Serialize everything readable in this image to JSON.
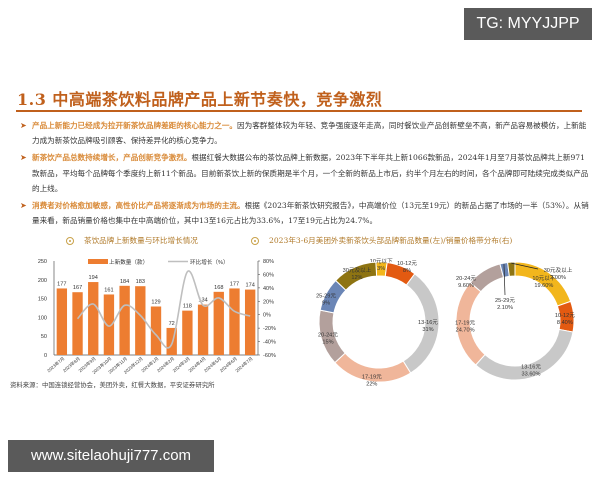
{
  "watermarks": {
    "top_right": "TG: MYYJJPP",
    "bottom_left": "www.sitelaohuji777.com"
  },
  "section": {
    "title": "1.3 中高端茶饮料品牌产品上新节奏快，竞争激烈"
  },
  "bullets": [
    {
      "highlight": "产品上新能力已经成为拉开新茶饮品牌差距的核心能力之一。",
      "body": "因为客群整体较为年轻、竞争强度逐年走高，同时餐饮业产品创新壁垒不高，新产品容易被模仿，上新能力成为新茶饮品牌吸引顾客、保持差异化的核心竞争力。"
    },
    {
      "highlight": "新茶饮产品总数持续增长，产品创新竞争激烈。",
      "body": "根据红餐大数据公布的茶饮品牌上新数据，2023年下半年共上新1066款新品，2024年1月至7月茶饮品牌共上新971款新品，平均每个品牌每个季度约上新11个新品。目前新茶饮上新的保质期是半个月，一个全新的新品上市后，约半个月左右的时间，各个品牌即可陆续完成类似产品的上线。"
    },
    {
      "highlight": "消费者对价格愈加敏感，高性价比产品将逐渐成为市场的主流。",
      "body": "根据《2023年新茶饮研究报告》，中高端价位（13元至19元）的新品占据了市场的一半（53%）。从销量来看，新品销量价格也集中在中高端价位，其中13至16元占比为33.6%，17至19元占比为24.7%。"
    }
  ],
  "figures": {
    "left_title": "茶饮品牌上新数量与环比增长情况",
    "right_title": "2023年3-6月美团外卖新茶饮头部品牌新品数量(左)/销量价格带分布(右)"
  },
  "source": "资料来源：中国连锁经营协会，美团外卖，红餐大数据，平安证券研究所",
  "colors": {
    "accent": "#c0601c",
    "bar": "#ed7d31",
    "line": "#bfbfbf",
    "highlight_text": "#d98b3a"
  },
  "chart_data": [
    {
      "type": "bar",
      "title": "茶饮品牌上新数量与环比增长情况",
      "categories": [
        "2023年7月",
        "2023年8月",
        "2023年9月",
        "2023年10月",
        "2023年11月",
        "2023年12月",
        "2024年1月",
        "2024年2月",
        "2024年3月",
        "2024年4月",
        "2024年5月",
        "2024年6月",
        "2024年7月"
      ],
      "series": [
        {
          "name": "上新数量（款）",
          "type": "bar",
          "axis": "left",
          "values": [
            177,
            167,
            194,
            161,
            184,
            183,
            129,
            72,
            118,
            134,
            168,
            177,
            174
          ]
        },
        {
          "name": "环比增长（%）",
          "type": "line",
          "axis": "right",
          "values": [
            null,
            -6,
            16,
            -17,
            14,
            -1,
            -30,
            -44,
            64,
            14,
            25,
            5,
            -2
          ]
        }
      ],
      "left_axis": {
        "ticks": [
          "0",
          "50",
          "100",
          "150",
          "200",
          "250"
        ],
        "ylim": [
          0,
          250
        ]
      },
      "right_axis": {
        "ticks": [
          "-60%",
          "-40%",
          "-20%",
          "0%",
          "20%",
          "40%",
          "60%",
          "80%"
        ],
        "ylim": [
          -60,
          80
        ]
      },
      "legend": [
        "上新数量（款）",
        "环比增长（%）"
      ],
      "legend_position": "top",
      "grid": false
    },
    {
      "type": "pie",
      "subtype": "donut",
      "title": "新品数量价格带分布",
      "categories": [
        "10元以下",
        "10-12元",
        "13-16元",
        "17-19元",
        "20-24元",
        "25-29元",
        "30元及以上"
      ],
      "values": [
        3,
        8,
        31,
        22,
        15,
        9,
        12
      ],
      "labels": [
        "3%",
        "8%",
        "31%",
        "22%",
        "15%",
        "9%",
        "12%"
      ],
      "colors": [
        "#f2b61c",
        "#e35a11",
        "#c8c8c8",
        "#f0b69a",
        "#b3a09c",
        "#6b86b6",
        "#8e7412"
      ]
    },
    {
      "type": "pie",
      "subtype": "donut",
      "title": "销量价格带分布",
      "categories": [
        "10元以下",
        "10-12元",
        "13-16元",
        "17-19元",
        "20-24元",
        "25-29元",
        "30元及以上"
      ],
      "values": [
        19.6,
        8.4,
        33.6,
        24.7,
        9.6,
        2.1,
        2.0
      ],
      "labels": [
        "19.60%",
        "8.40%",
        "33.60%",
        "24.70%",
        "9.60%",
        "2.10%",
        "2.00%"
      ],
      "colors": [
        "#f2b61c",
        "#e35a11",
        "#c8c8c8",
        "#f0b69a",
        "#b3a09c",
        "#6b86b6",
        "#8e7412"
      ]
    }
  ]
}
